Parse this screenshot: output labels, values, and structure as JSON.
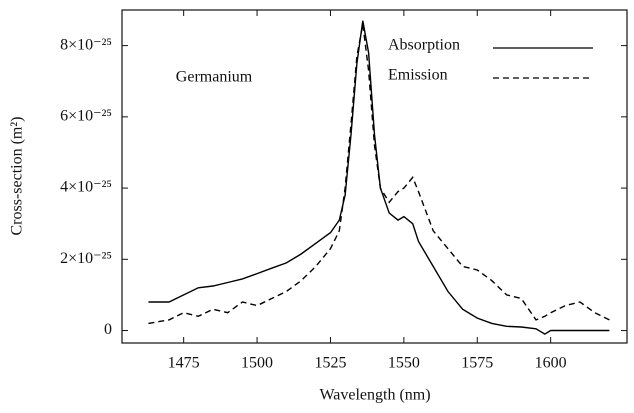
{
  "chart_data": {
    "type": "line",
    "annotations": [
      "Germanium"
    ],
    "x_label": "Wavelength (nm)",
    "y_label": "Cross-section (m²)",
    "x": [
      1463,
      1470,
      1475,
      1480,
      1485,
      1490,
      1495,
      1500,
      1505,
      1510,
      1515,
      1520,
      1525,
      1528,
      1530,
      1532,
      1534,
      1536,
      1538,
      1540,
      1542,
      1545,
      1548,
      1550,
      1553,
      1555,
      1560,
      1565,
      1570,
      1575,
      1580,
      1585,
      1590,
      1595,
      1598,
      1600,
      1605,
      1610,
      1615,
      1620
    ],
    "series": [
      {
        "name": "Absorption",
        "color": "#000000",
        "linestyle": "solid",
        "values": [
          8e-26,
          8e-26,
          1e-25,
          1.2e-25,
          1.25e-25,
          1.35e-25,
          1.45e-25,
          1.6e-25,
          1.75e-25,
          1.9e-25,
          2.15e-25,
          2.45e-25,
          2.75e-25,
          3.1e-25,
          3.8e-25,
          5.5e-25,
          7.5e-25,
          8.7e-25,
          7.8e-25,
          5.5e-25,
          4e-25,
          3.3e-25,
          3.1e-25,
          3.2e-25,
          3e-25,
          2.5e-25,
          1.8e-25,
          1.1e-25,
          6e-26,
          3.5e-26,
          2e-26,
          1.2e-26,
          1e-26,
          5e-27,
          -1e-26,
          0.0,
          0.0,
          0.0,
          0.0,
          0.0
        ]
      },
      {
        "name": "Emission",
        "color": "#000000",
        "linestyle": "dashed",
        "values": [
          2e-26,
          3e-26,
          5e-26,
          4e-26,
          6e-26,
          5e-26,
          8e-26,
          7e-26,
          9e-26,
          1.1e-25,
          1.4e-25,
          1.8e-25,
          2.3e-25,
          2.8e-25,
          4e-25,
          5.8e-25,
          7.7e-25,
          8.6e-25,
          7.3e-25,
          5.2e-25,
          4e-25,
          3.6e-25,
          3.9e-25,
          4e-25,
          4.3e-25,
          3.9e-25,
          2.8e-25,
          2.3e-25,
          1.8e-25,
          1.7e-25,
          1.4e-25,
          1e-25,
          9e-26,
          3e-26,
          4e-26,
          5e-26,
          7e-26,
          8e-26,
          5e-26,
          3e-26
        ]
      }
    ],
    "xlim": [
      1454,
      1626
    ],
    "xticks": [
      1475,
      1500,
      1525,
      1550,
      1575,
      1600
    ],
    "ylim": [
      -3.5e-26,
      9e-25
    ],
    "yticks": [
      0,
      {
        "value": 2e-25,
        "label": "2×10⁻²⁵"
      },
      {
        "value": 4e-25,
        "label": "4×10⁻²⁵"
      },
      {
        "value": 6e-25,
        "label": "6×10⁻²⁵"
      },
      {
        "value": 8e-25,
        "label": "8×10⁻²⁵"
      }
    ],
    "legend": "upper right"
  }
}
